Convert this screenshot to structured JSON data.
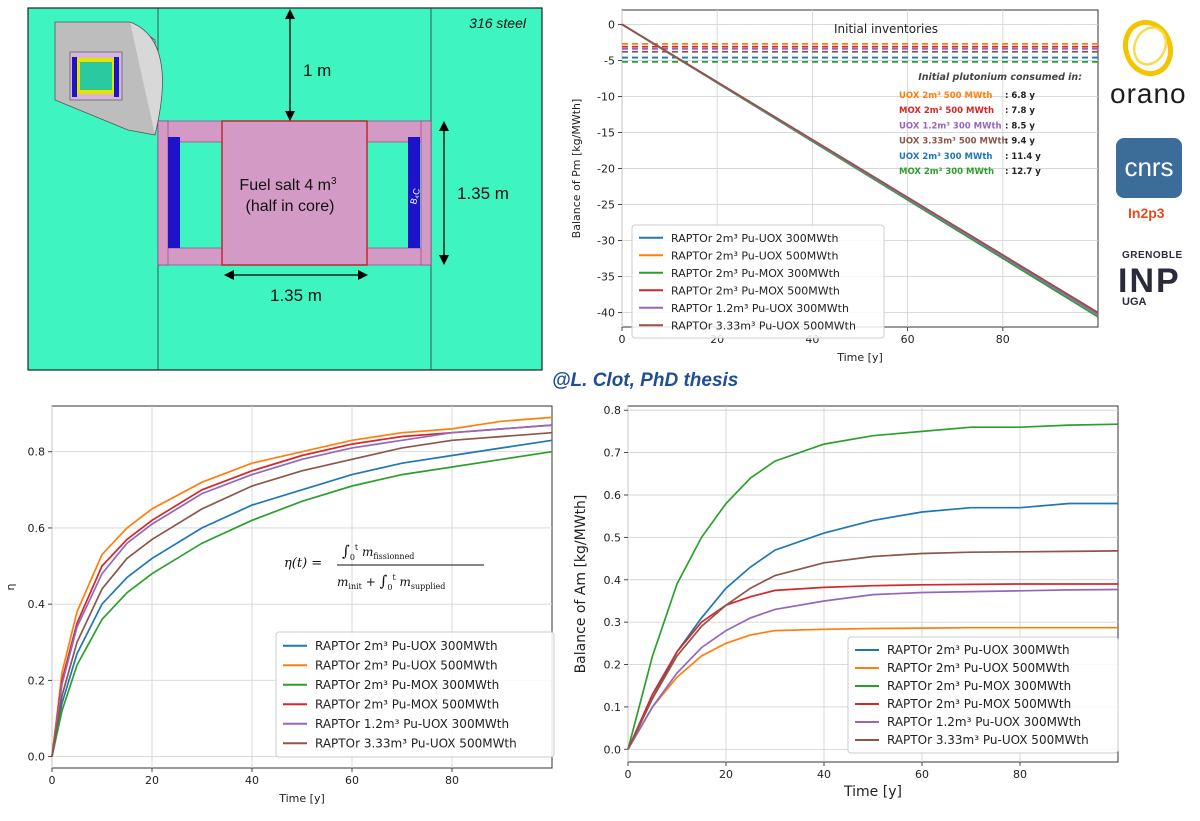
{
  "credit": "@L. Clot, PhD thesis",
  "logos": {
    "orano": "orano",
    "cnrs": "cnrs",
    "in2p3": "In2p3",
    "grenoble": "GRENOBLE",
    "inp": "INP",
    "uga": "UGA"
  },
  "diagram": {
    "material": "316 steel",
    "gap_label": "1 m",
    "width_label": "1.35 m",
    "height_label": "1.35 m",
    "fuel_line1": "Fuel salt 4 m",
    "fuel_sup": "3",
    "fuel_line2": "(half in core)",
    "b4c": "B₄C",
    "colors": {
      "background": "#3ef5c2",
      "fuel": "#d49ac6",
      "absorber": "#1b14c8",
      "edge": "#c1272d"
    }
  },
  "colors": {
    "uox300": "#1f77b4",
    "uox500": "#ff7f0e",
    "mox300": "#2ca02c",
    "mox500": "#d62728",
    "uox300_12": "#9467bd",
    "uox500_333": "#8c564b"
  },
  "legend_entries": [
    "RAPTOr 2m³ Pu-UOX 300MWth",
    "RAPTOr 2m³ Pu-UOX 500MWth",
    "RAPTOr 2m³ Pu-MOX 300MWth",
    "RAPTOr 2m³ Pu-MOX 500MWth",
    "RAPTOr 1.2m³ Pu-UOX 300MWth",
    "RAPTOr 3.33m³ Pu-UOX 500MWth"
  ],
  "chart_data": [
    {
      "id": "pm",
      "type": "line",
      "title": "",
      "xlabel": "Time [y]",
      "ylabel": "Balance of Pm  [kg/MWth]",
      "xlim": [
        0,
        100
      ],
      "ylim": [
        -42,
        2
      ],
      "xticks": [
        0,
        20,
        40,
        60,
        80
      ],
      "yticks": [
        0,
        -5,
        -10,
        -15,
        -20,
        -25,
        -30,
        -35,
        -40
      ],
      "grid": true,
      "annotation_title": "Initial inventories",
      "consumed_title": "Initial plutonium consumed in:",
      "consumed": [
        {
          "label": "UOX 2m³ 500 MWth",
          "value": ": 6.8 y",
          "color": "#ff7f0e"
        },
        {
          "label": "MOX 2m³ 500 MWth",
          "value": ": 7.8 y",
          "color": "#d62728"
        },
        {
          "label": "UOX 1.2m³ 300 MWth",
          "value": ": 8.5 y",
          "color": "#9467bd"
        },
        {
          "label": "UOX 3.33m³ 500 MWth",
          "value": ": 9.4 y",
          "color": "#8c564b"
        },
        {
          "label": "UOX 2m³ 300 MWth",
          "value": ": 11.4 y",
          "color": "#1f77b4"
        },
        {
          "label": "MOX 2m³ 300 MWth",
          "value": ": 12.7 y",
          "color": "#2ca02c"
        }
      ],
      "dashed_levels": [
        {
          "y": -2.7,
          "color": "#ff7f0e"
        },
        {
          "y": -3.1,
          "color": "#d62728"
        },
        {
          "y": -3.4,
          "color": "#9467bd"
        },
        {
          "y": -3.8,
          "color": "#8c564b"
        },
        {
          "y": -4.6,
          "color": "#1f77b4"
        },
        {
          "y": -5.2,
          "color": "#2ca02c"
        }
      ],
      "legend_position": "lower-left",
      "series": [
        {
          "name": "RAPTOr 2m³ Pu-UOX 300MWth",
          "color": "#1f77b4",
          "x": [
            0,
            100
          ],
          "y": [
            0,
            -40.2
          ]
        },
        {
          "name": "RAPTOr 2m³ Pu-UOX 500MWth",
          "color": "#ff7f0e",
          "x": [
            0,
            100
          ],
          "y": [
            0,
            -40.0
          ]
        },
        {
          "name": "RAPTOr 2m³ Pu-MOX 300MWth",
          "color": "#2ca02c",
          "x": [
            0,
            100
          ],
          "y": [
            0,
            -40.6
          ]
        },
        {
          "name": "RAPTOr 2m³ Pu-MOX 500MWth",
          "color": "#d62728",
          "x": [
            0,
            100
          ],
          "y": [
            0,
            -40.1
          ]
        },
        {
          "name": "RAPTOr 1.2m³ Pu-UOX 300MWth",
          "color": "#9467bd",
          "x": [
            0,
            100
          ],
          "y": [
            0,
            -40.3
          ]
        },
        {
          "name": "RAPTOr 3.33m³ Pu-UOX 500MWth",
          "color": "#8c564b",
          "x": [
            0,
            100
          ],
          "y": [
            0,
            -40.0
          ]
        }
      ]
    },
    {
      "id": "eta",
      "type": "line",
      "title": "",
      "xlabel": "Time [y]",
      "ylabel": "η",
      "xlim": [
        0,
        100
      ],
      "ylim": [
        -0.03,
        0.92
      ],
      "xticks": [
        0,
        20,
        40,
        60,
        80
      ],
      "yticks": [
        0.0,
        0.2,
        0.4,
        0.6,
        0.8
      ],
      "grid": true,
      "formula": "η(t) = ∫₀ᵗ m_fissionned / (m_init + ∫₀ᵗ m_supplied)",
      "legend_position": "lower-right",
      "series": [
        {
          "name": "RAPTOr 2m³ Pu-UOX 300MWth",
          "color": "#1f77b4",
          "x": [
            0,
            2,
            5,
            10,
            15,
            20,
            30,
            40,
            50,
            60,
            70,
            80,
            90,
            100
          ],
          "y": [
            0,
            0.14,
            0.27,
            0.4,
            0.47,
            0.52,
            0.6,
            0.66,
            0.7,
            0.74,
            0.77,
            0.79,
            0.81,
            0.83
          ]
        },
        {
          "name": "RAPTOr 2m³ Pu-UOX 500MWth",
          "color": "#ff7f0e",
          "x": [
            0,
            2,
            5,
            10,
            15,
            20,
            30,
            40,
            50,
            60,
            70,
            80,
            90,
            100
          ],
          "y": [
            0,
            0.22,
            0.38,
            0.53,
            0.6,
            0.65,
            0.72,
            0.77,
            0.8,
            0.83,
            0.85,
            0.86,
            0.88,
            0.89
          ]
        },
        {
          "name": "RAPTOr 2m³ Pu-MOX 300MWth",
          "color": "#2ca02c",
          "x": [
            0,
            2,
            5,
            10,
            15,
            20,
            30,
            40,
            50,
            60,
            70,
            80,
            90,
            100
          ],
          "y": [
            0,
            0.12,
            0.24,
            0.36,
            0.43,
            0.48,
            0.56,
            0.62,
            0.67,
            0.71,
            0.74,
            0.76,
            0.78,
            0.8
          ]
        },
        {
          "name": "RAPTOr 2m³ Pu-MOX 500MWth",
          "color": "#d62728",
          "x": [
            0,
            2,
            5,
            10,
            15,
            20,
            30,
            40,
            50,
            60,
            70,
            80,
            90,
            100
          ],
          "y": [
            0,
            0.2,
            0.35,
            0.5,
            0.57,
            0.62,
            0.7,
            0.75,
            0.79,
            0.82,
            0.84,
            0.85,
            0.86,
            0.87
          ]
        },
        {
          "name": "RAPTOr 1.2m³ Pu-UOX 300MWth",
          "color": "#9467bd",
          "x": [
            0,
            2,
            5,
            10,
            15,
            20,
            30,
            40,
            50,
            60,
            70,
            80,
            90,
            100
          ],
          "y": [
            0,
            0.19,
            0.34,
            0.48,
            0.56,
            0.61,
            0.69,
            0.74,
            0.78,
            0.81,
            0.83,
            0.85,
            0.86,
            0.87
          ]
        },
        {
          "name": "RAPTOr 3.33m³ Pu-UOX 500MWth",
          "color": "#8c564b",
          "x": [
            0,
            2,
            5,
            10,
            15,
            20,
            30,
            40,
            50,
            60,
            70,
            80,
            90,
            100
          ],
          "y": [
            0,
            0.16,
            0.3,
            0.44,
            0.52,
            0.57,
            0.65,
            0.71,
            0.75,
            0.78,
            0.81,
            0.83,
            0.84,
            0.85
          ]
        }
      ]
    },
    {
      "id": "am",
      "type": "line",
      "title": "",
      "xlabel": "Time [y]",
      "ylabel": "Balance of Am [kg/MWth]",
      "xlim": [
        0,
        100
      ],
      "ylim": [
        -0.03,
        0.81
      ],
      "xticks": [
        0,
        20,
        40,
        60,
        80
      ],
      "yticks": [
        0.0,
        0.1,
        0.2,
        0.3,
        0.4,
        0.5,
        0.6,
        0.7,
        0.8
      ],
      "grid": true,
      "legend_position": "lower-right",
      "series": [
        {
          "name": "RAPTOr 2m³ Pu-UOX 300MWth",
          "color": "#1f77b4",
          "x": [
            0,
            5,
            10,
            15,
            20,
            25,
            30,
            40,
            50,
            60,
            70,
            80,
            90,
            100
          ],
          "y": [
            0,
            0.12,
            0.23,
            0.31,
            0.38,
            0.43,
            0.47,
            0.51,
            0.54,
            0.56,
            0.57,
            0.57,
            0.58,
            0.58
          ]
        },
        {
          "name": "RAPTOr 2m³ Pu-UOX 500MWth",
          "color": "#ff7f0e",
          "x": [
            0,
            5,
            10,
            15,
            20,
            25,
            30,
            40,
            50,
            60,
            70,
            80,
            90,
            100
          ],
          "y": [
            0,
            0.1,
            0.17,
            0.22,
            0.25,
            0.27,
            0.28,
            0.283,
            0.285,
            0.286,
            0.287,
            0.287,
            0.287,
            0.287
          ]
        },
        {
          "name": "RAPTOr 2m³ Pu-MOX 300MWth",
          "color": "#2ca02c",
          "x": [
            0,
            5,
            10,
            15,
            20,
            25,
            30,
            40,
            50,
            60,
            70,
            80,
            90,
            100
          ],
          "y": [
            0,
            0.22,
            0.39,
            0.5,
            0.58,
            0.64,
            0.68,
            0.72,
            0.74,
            0.75,
            0.76,
            0.76,
            0.765,
            0.767
          ]
        },
        {
          "name": "RAPTOr 2m³ Pu-MOX 500MWth",
          "color": "#d62728",
          "x": [
            0,
            5,
            10,
            15,
            20,
            25,
            30,
            40,
            50,
            60,
            70,
            80,
            90,
            100
          ],
          "y": [
            0,
            0.13,
            0.23,
            0.3,
            0.34,
            0.36,
            0.375,
            0.382,
            0.386,
            0.388,
            0.389,
            0.39,
            0.39,
            0.39
          ]
        },
        {
          "name": "RAPTOr 1.2m³ Pu-UOX 300MWth",
          "color": "#9467bd",
          "x": [
            0,
            5,
            10,
            15,
            20,
            25,
            30,
            40,
            50,
            60,
            70,
            80,
            90,
            100
          ],
          "y": [
            0,
            0.1,
            0.18,
            0.24,
            0.28,
            0.31,
            0.33,
            0.35,
            0.365,
            0.37,
            0.372,
            0.374,
            0.376,
            0.377
          ]
        },
        {
          "name": "RAPTOr 3.33m³ Pu-UOX 500MWth",
          "color": "#8c564b",
          "x": [
            0,
            5,
            10,
            15,
            20,
            25,
            30,
            40,
            50,
            60,
            70,
            80,
            90,
            100
          ],
          "y": [
            0,
            0.12,
            0.22,
            0.29,
            0.34,
            0.38,
            0.41,
            0.44,
            0.455,
            0.462,
            0.465,
            0.466,
            0.467,
            0.468
          ]
        }
      ]
    }
  ]
}
